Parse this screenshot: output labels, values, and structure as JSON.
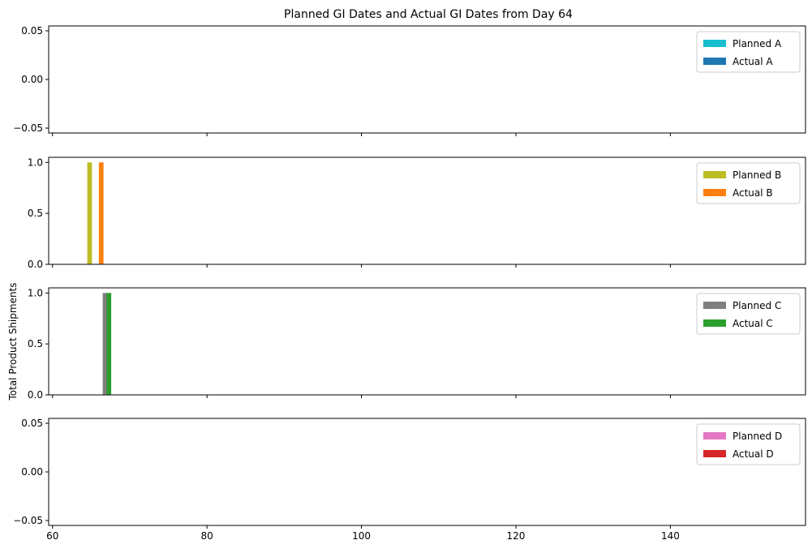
{
  "chart_data": {
    "type": "bar",
    "title": "Planned GI Dates and Actual GI Dates from Day 64",
    "ylabel": "Total Product Shipments",
    "xlim": [
      59.5,
      157.5
    ],
    "x_ticks": [
      60,
      80,
      100,
      120,
      140
    ],
    "bar_width": 0.6,
    "subplots": [
      {
        "ylim": [
          -0.055,
          0.055
        ],
        "y_ticks": [
          -0.05,
          0.0,
          0.05
        ],
        "y_tick_labels": [
          "−0.05",
          "0.00",
          "0.05"
        ],
        "series": [
          {
            "name": "Planned A",
            "color": "#17becf",
            "x": [],
            "values": []
          },
          {
            "name": "Actual A",
            "color": "#1f77b4",
            "x": [],
            "values": []
          }
        ]
      },
      {
        "ylim": [
          0,
          1.05
        ],
        "y_ticks": [
          0.0,
          0.5,
          1.0
        ],
        "y_tick_labels": [
          "0.0",
          "0.5",
          "1.0"
        ],
        "series": [
          {
            "name": "Planned B",
            "color": "#bcbd22",
            "x": [
              64.8
            ],
            "values": [
              1
            ]
          },
          {
            "name": "Actual B",
            "color": "#ff7f0e",
            "x": [
              66.3
            ],
            "values": [
              1
            ]
          }
        ]
      },
      {
        "ylim": [
          0,
          1.05
        ],
        "y_ticks": [
          0.0,
          0.5,
          1.0
        ],
        "y_tick_labels": [
          "0.0",
          "0.5",
          "1.0"
        ],
        "series": [
          {
            "name": "Planned C",
            "color": "#7f7f7f",
            "x": [
              66.8
            ],
            "values": [
              1
            ]
          },
          {
            "name": "Actual C",
            "color": "#2ca02c",
            "x": [
              67.3
            ],
            "values": [
              1
            ]
          }
        ]
      },
      {
        "ylim": [
          -0.055,
          0.055
        ],
        "y_ticks": [
          -0.05,
          0.0,
          0.05
        ],
        "y_tick_labels": [
          "−0.05",
          "0.00",
          "0.05"
        ],
        "series": [
          {
            "name": "Planned D",
            "color": "#e377c2",
            "x": [],
            "values": []
          },
          {
            "name": "Actual D",
            "color": "#d62728",
            "x": [],
            "values": []
          }
        ]
      }
    ]
  }
}
